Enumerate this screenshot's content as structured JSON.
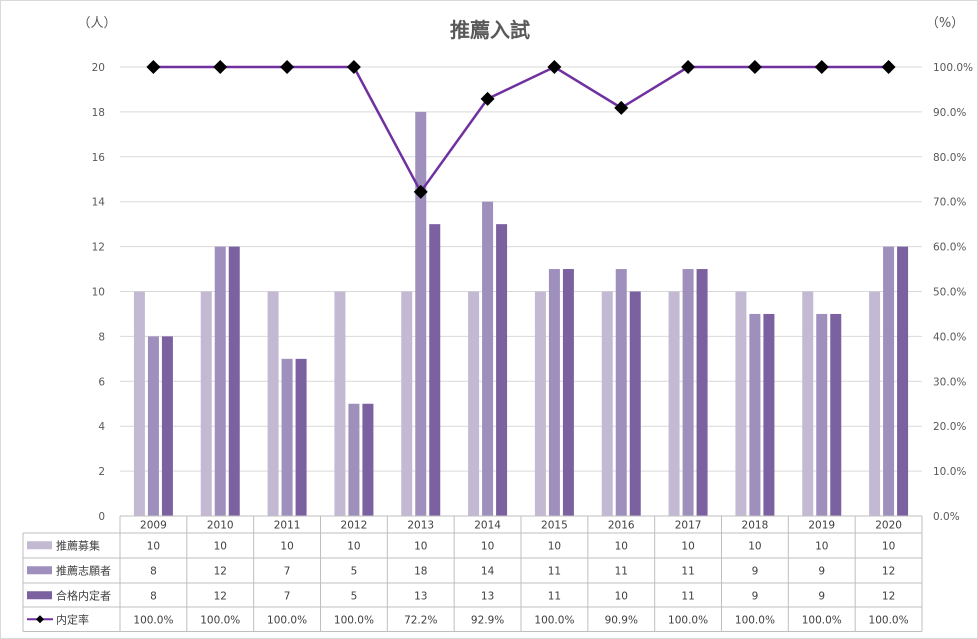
{
  "chart_data": {
    "type": "bar",
    "title": "推薦入試",
    "y_unit_left": "（人）",
    "y_unit_right": "（%）",
    "categories": [
      "2009",
      "2010",
      "2011",
      "2012",
      "2013",
      "2014",
      "2015",
      "2016",
      "2017",
      "2018",
      "2019",
      "2020"
    ],
    "ylim": [
      0,
      20
    ],
    "yticks": [
      "0",
      "2",
      "4",
      "6",
      "8",
      "10",
      "12",
      "14",
      "16",
      "18",
      "20"
    ],
    "y2lim": [
      0,
      100
    ],
    "y2ticks": [
      "0.0%",
      "10.0%",
      "20.0%",
      "30.0%",
      "40.0%",
      "50.0%",
      "60.0%",
      "70.0%",
      "80.0%",
      "90.0%",
      "100.0%"
    ],
    "grid": true,
    "legend": "data-table",
    "series": [
      {
        "name": "推薦募集",
        "type": "bar",
        "color": "#c3b9d3",
        "values": [
          10,
          10,
          10,
          10,
          10,
          10,
          10,
          10,
          10,
          10,
          10,
          10
        ]
      },
      {
        "name": "推薦志願者",
        "type": "bar",
        "color": "#9e8fbd",
        "values": [
          8,
          12,
          7,
          5,
          18,
          14,
          11,
          11,
          11,
          9,
          9,
          12
        ]
      },
      {
        "name": "合格内定者",
        "type": "bar",
        "color": "#7b619f",
        "values": [
          8,
          12,
          7,
          5,
          13,
          13,
          11,
          10,
          11,
          9,
          9,
          12
        ]
      },
      {
        "name": "内定率",
        "type": "line",
        "axis": "right",
        "color": "#7030a0",
        "marker_color": "#000000",
        "values": [
          100,
          100,
          100,
          100,
          72.2,
          92.9,
          100,
          90.9,
          100,
          100,
          100,
          100
        ],
        "labels": [
          "100.0%",
          "100.0%",
          "100.0%",
          "100.0%",
          "72.2%",
          "92.9%",
          "100.0%",
          "90.9%",
          "100.0%",
          "100.0%",
          "100.0%",
          "100.0%"
        ]
      }
    ]
  }
}
